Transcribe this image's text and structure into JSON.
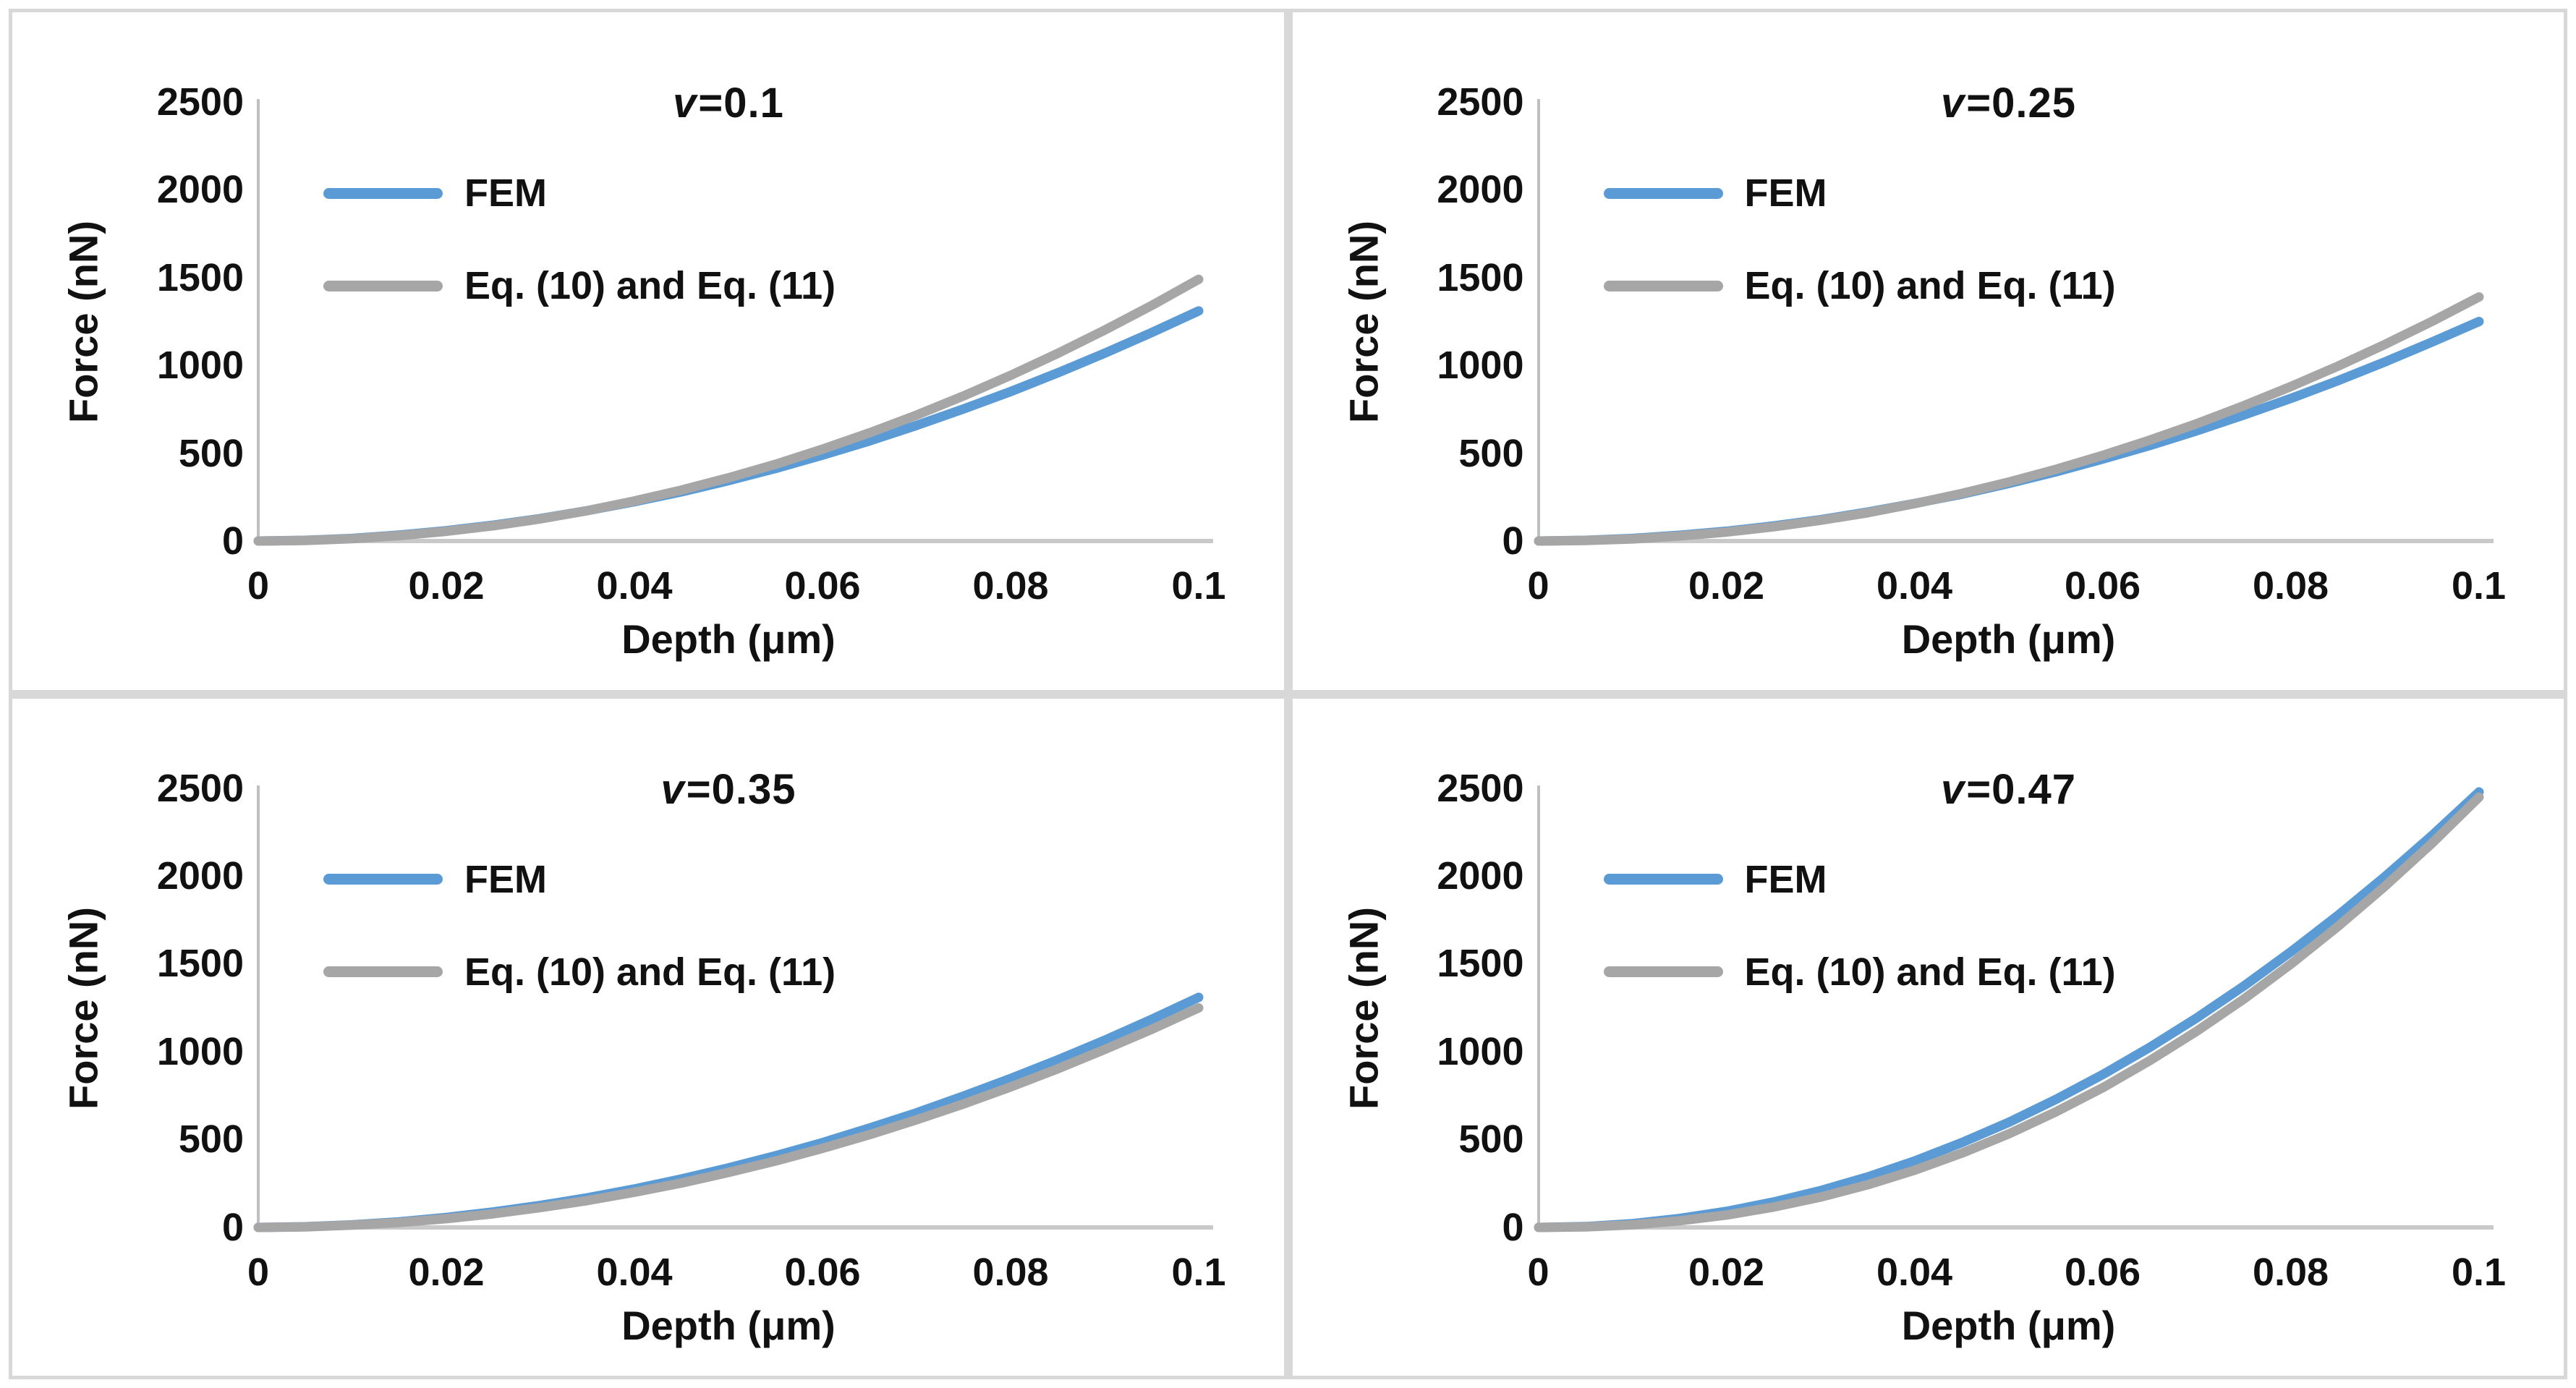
{
  "colors": {
    "fem_line": "#5B9BD5",
    "eq_line": "#A6A6A6",
    "y_axis_line": "#BFBFBF",
    "x_axis_line": "#C9C9C9",
    "panel_divider": "#D8D8D8",
    "text": "#111111"
  },
  "chart_data": [
    {
      "type": "line",
      "title": "v=0.1",
      "title_italic": "v",
      "title_rest": "=0.1",
      "xlabel": "Depth (μm)",
      "ylabel": "Force (nN)",
      "xlim": [
        0,
        0.1
      ],
      "ylim": [
        0,
        2500
      ],
      "grid": false,
      "legend_position": "upper-left-inside",
      "x_ticks": [
        0,
        0.02,
        0.04,
        0.06,
        0.08,
        0.1
      ],
      "x_tick_labels": [
        "0",
        "0.02",
        "0.04",
        "0.06",
        "0.08",
        "0.1"
      ],
      "y_ticks": [
        0,
        500,
        1000,
        1500,
        2000,
        2500
      ],
      "y_tick_labels": [
        "0",
        "500",
        "1000",
        "1500",
        "2000",
        "2500"
      ],
      "x": [
        0,
        0.005,
        0.01,
        0.015,
        0.02,
        0.025,
        0.03,
        0.035,
        0.04,
        0.045,
        0.05,
        0.055,
        0.06,
        0.065,
        0.07,
        0.075,
        0.08,
        0.085,
        0.09,
        0.095,
        0.1
      ],
      "series": [
        {
          "name": "FEM",
          "color": "#5B9BD5",
          "values": [
            0,
            4,
            15,
            34,
            59,
            90,
            128,
            173,
            224,
            280,
            344,
            413,
            489,
            570,
            658,
            752,
            851,
            957,
            1069,
            1187,
            1310
          ]
        },
        {
          "name": "Eq. (10) and Eq. (11)",
          "color": "#A6A6A6",
          "values": [
            0,
            3,
            13,
            31,
            55,
            87,
            126,
            173,
            228,
            290,
            360,
            437,
            523,
            616,
            717,
            826,
            943,
            1068,
            1201,
            1341,
            1490
          ]
        }
      ]
    },
    {
      "type": "line",
      "title": "v=0.25",
      "title_italic": "v",
      "title_rest": "=0.25",
      "xlabel": "Depth (μm)",
      "ylabel": "Force (nN)",
      "xlim": [
        0,
        0.1
      ],
      "ylim": [
        0,
        2500
      ],
      "grid": false,
      "legend_position": "upper-left-inside",
      "x_ticks": [
        0,
        0.02,
        0.04,
        0.06,
        0.08,
        0.1
      ],
      "x_tick_labels": [
        "0",
        "0.02",
        "0.04",
        "0.06",
        "0.08",
        "0.1"
      ],
      "y_ticks": [
        0,
        500,
        1000,
        1500,
        2000,
        2500
      ],
      "y_tick_labels": [
        "0",
        "500",
        "1000",
        "1500",
        "2000",
        "2500"
      ],
      "x": [
        0,
        0.005,
        0.01,
        0.015,
        0.02,
        0.025,
        0.03,
        0.035,
        0.04,
        0.045,
        0.05,
        0.055,
        0.06,
        0.065,
        0.07,
        0.075,
        0.08,
        0.085,
        0.09,
        0.095,
        0.1
      ],
      "series": [
        {
          "name": "FEM",
          "color": "#5B9BD5",
          "values": [
            0,
            4,
            15,
            33,
            56,
            86,
            122,
            165,
            214,
            267,
            328,
            394,
            467,
            544,
            628,
            718,
            812,
            913,
            1020,
            1133,
            1250
          ]
        },
        {
          "name": "Eq. (10) and Eq. (11)",
          "color": "#A6A6A6",
          "values": [
            0,
            3,
            12,
            29,
            51,
            81,
            118,
            161,
            213,
            271,
            336,
            408,
            488,
            575,
            669,
            771,
            880,
            996,
            1120,
            1251,
            1390
          ]
        }
      ]
    },
    {
      "type": "line",
      "title": "v=0.35",
      "title_italic": "v",
      "title_rest": "=0.35",
      "xlabel": "Depth (μm)",
      "ylabel": "Force (nN)",
      "xlim": [
        0,
        0.1
      ],
      "ylim": [
        0,
        2500
      ],
      "grid": false,
      "legend_position": "upper-left-inside",
      "x_ticks": [
        0,
        0.02,
        0.04,
        0.06,
        0.08,
        0.1
      ],
      "x_tick_labels": [
        "0",
        "0.02",
        "0.04",
        "0.06",
        "0.08",
        "0.1"
      ],
      "y_ticks": [
        0,
        500,
        1000,
        1500,
        2000,
        2500
      ],
      "y_tick_labels": [
        "0",
        "500",
        "1000",
        "1500",
        "2000",
        "2500"
      ],
      "x": [
        0,
        0.005,
        0.01,
        0.015,
        0.02,
        0.025,
        0.03,
        0.035,
        0.04,
        0.045,
        0.05,
        0.055,
        0.06,
        0.065,
        0.07,
        0.075,
        0.08,
        0.085,
        0.09,
        0.095,
        0.1
      ],
      "series": [
        {
          "name": "FEM",
          "color": "#5B9BD5",
          "values": [
            0,
            4,
            15,
            32,
            57,
            88,
            125,
            169,
            219,
            276,
            339,
            408,
            483,
            566,
            653,
            748,
            848,
            954,
            1066,
            1185,
            1310
          ]
        },
        {
          "name": "Eq. (10) and Eq. (11)",
          "color": "#A6A6A6",
          "values": [
            0,
            3,
            13,
            28,
            50,
            78,
            113,
            153,
            200,
            253,
            313,
            378,
            450,
            528,
            613,
            703,
            800,
            903,
            1013,
            1128,
            1250
          ]
        }
      ]
    },
    {
      "type": "line",
      "title": "v=0.47",
      "title_italic": "v",
      "title_rest": "=0.47",
      "xlabel": "Depth (μm)",
      "ylabel": "Force (nN)",
      "xlim": [
        0,
        0.1
      ],
      "ylim": [
        0,
        2500
      ],
      "grid": false,
      "legend_position": "upper-left-inside",
      "x_ticks": [
        0,
        0.02,
        0.04,
        0.06,
        0.08,
        0.1
      ],
      "x_tick_labels": [
        "0",
        "0.02",
        "0.04",
        "0.06",
        "0.08",
        "0.1"
      ],
      "y_ticks": [
        0,
        500,
        1000,
        1500,
        2000,
        2500
      ],
      "y_tick_labels": [
        "0",
        "500",
        "1000",
        "1500",
        "2000",
        "2500"
      ],
      "x": [
        0,
        0.005,
        0.01,
        0.015,
        0.02,
        0.025,
        0.03,
        0.035,
        0.04,
        0.045,
        0.05,
        0.055,
        0.06,
        0.065,
        0.07,
        0.075,
        0.08,
        0.085,
        0.09,
        0.095,
        0.1
      ],
      "series": [
        {
          "name": "FEM",
          "color": "#5B9BD5",
          "values": [
            0,
            5,
            22,
            51,
            92,
            145,
            210,
            288,
            379,
            483,
            599,
            729,
            871,
            1026,
            1194,
            1375,
            1570,
            1777,
            1998,
            2232,
            2480
          ]
        },
        {
          "name": "Eq. (10) and Eq. (11)",
          "color": "#A6A6A6",
          "values": [
            0,
            3,
            15,
            38,
            71,
            116,
            173,
            243,
            326,
            423,
            533,
            658,
            796,
            950,
            1118,
            1301,
            1500,
            1714,
            1943,
            2188,
            2450
          ]
        }
      ]
    }
  ]
}
